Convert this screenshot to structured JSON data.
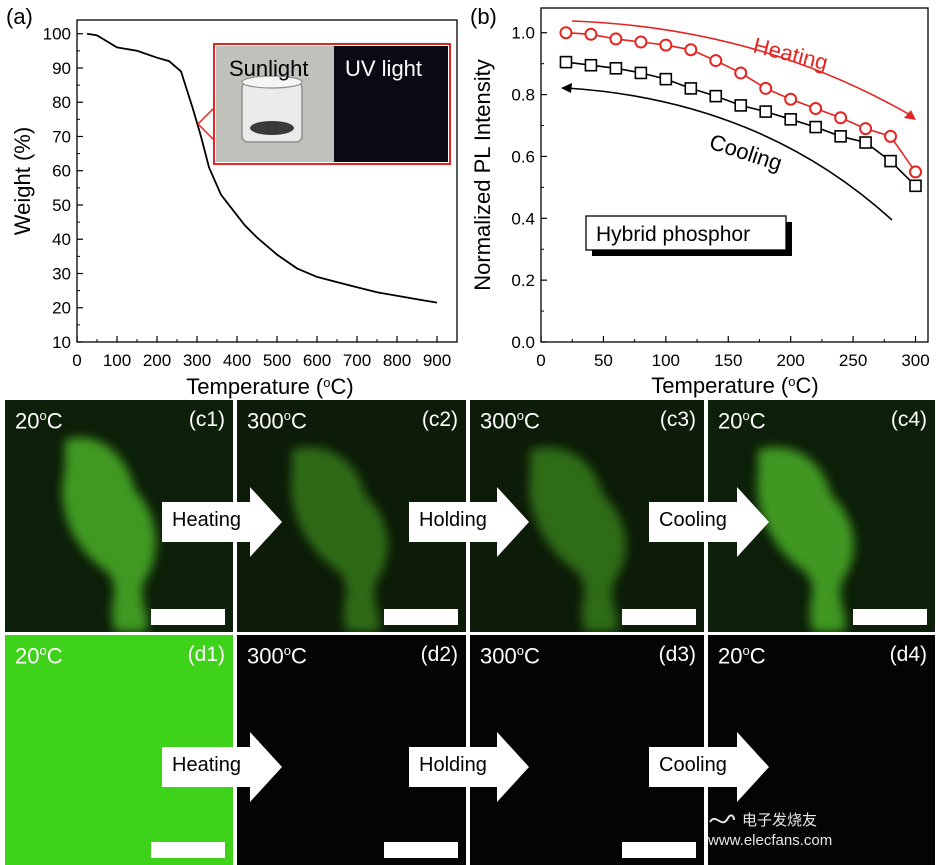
{
  "panel_a": {
    "tag": "(a)",
    "inset": {
      "left_label": "Sunlight",
      "right_label": "UV light"
    }
  },
  "panel_b": {
    "tag": "(b)",
    "legend_box": "Hybrid phosphor",
    "arrow_heating_label": "Heating",
    "arrow_cooling_label": "Cooling"
  },
  "chart_data": [
    {
      "type": "line",
      "xlabel": "Temperature (oC)",
      "ylabel": "Weight (%)",
      "xlim": [
        0,
        950
      ],
      "ylim": [
        10,
        104
      ],
      "xticks": [
        "0",
        "100",
        "200",
        "300",
        "400",
        "500",
        "600",
        "700",
        "800",
        "900"
      ],
      "yticks": [
        "10",
        "20",
        "30",
        "40",
        "50",
        "60",
        "70",
        "80",
        "90",
        "100"
      ],
      "series": [
        {
          "x": [
            25,
            50,
            100,
            150,
            200,
            230,
            260,
            290,
            310,
            330,
            360,
            400,
            420,
            450,
            500,
            550,
            600,
            650,
            700,
            750,
            800,
            850,
            900
          ],
          "y": [
            100,
            99.5,
            96,
            95,
            93,
            92,
            89,
            78,
            70,
            61,
            53,
            47,
            44,
            40.5,
            35.5,
            31.5,
            29,
            27.5,
            26,
            24.5,
            23.5,
            22.5,
            21.5
          ]
        }
      ]
    },
    {
      "type": "line",
      "xlabel": "Temperature (oC)",
      "ylabel": "Normalized PL Intensity",
      "xlim": [
        0,
        310
      ],
      "ylim": [
        0.0,
        1.08
      ],
      "xticks": [
        "0",
        "50",
        "100",
        "150",
        "200",
        "250",
        "300"
      ],
      "yticks": [
        "0.0",
        "0.2",
        "0.4",
        "0.6",
        "0.8",
        "1.0"
      ],
      "series": [
        {
          "marker": "circle",
          "color": "#e52521",
          "x": [
            20,
            40,
            60,
            80,
            100,
            120,
            140,
            160,
            180,
            200,
            220,
            240,
            260,
            280,
            300
          ],
          "y": [
            1.0,
            0.995,
            0.98,
            0.97,
            0.96,
            0.945,
            0.91,
            0.87,
            0.82,
            0.785,
            0.755,
            0.725,
            0.69,
            0.665,
            0.55
          ]
        },
        {
          "marker": "square",
          "color": "#000000",
          "x": [
            20,
            40,
            60,
            80,
            100,
            120,
            140,
            160,
            180,
            200,
            220,
            240,
            260,
            280,
            300
          ],
          "y": [
            0.905,
            0.895,
            0.885,
            0.87,
            0.85,
            0.82,
            0.795,
            0.765,
            0.745,
            0.72,
            0.695,
            0.665,
            0.645,
            0.585,
            0.505
          ]
        }
      ]
    }
  ],
  "panel_c": [
    {
      "temp": "20",
      "sup": "o",
      "unit": "C",
      "tag": "(c1)"
    },
    {
      "temp": "300",
      "sup": "o",
      "unit": "C",
      "tag": "(c2)"
    },
    {
      "temp": "300",
      "sup": "o",
      "unit": "C",
      "tag": "(c3)"
    },
    {
      "temp": "20",
      "sup": "o",
      "unit": "C",
      "tag": "(c4)"
    }
  ],
  "panel_d": [
    {
      "temp": "20",
      "sup": "o",
      "unit": "C",
      "tag": "(d1)"
    },
    {
      "temp": "300",
      "sup": "o",
      "unit": "C",
      "tag": "(d2)"
    },
    {
      "temp": "300",
      "sup": "o",
      "unit": "C",
      "tag": "(d3)"
    },
    {
      "temp": "20",
      "sup": "o",
      "unit": "C",
      "tag": "(d4)"
    }
  ],
  "steps": [
    "Heating",
    "Holding",
    "Cooling"
  ],
  "watermark": "电子发烧友 www.elecfans.com",
  "colors": {
    "red": "#e52521",
    "green_bright": "#3fd21a",
    "tile_dark": "#0b1a08"
  }
}
